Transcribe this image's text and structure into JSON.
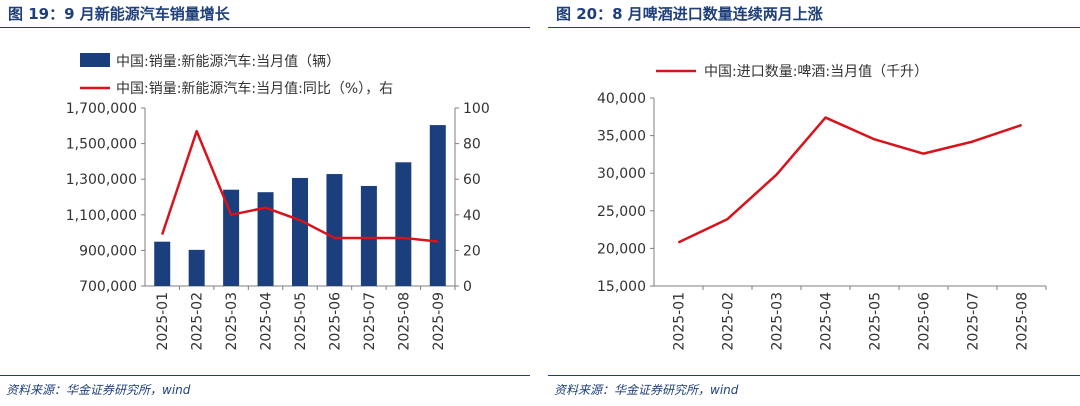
{
  "colors": {
    "bar": "#1a3f7c",
    "line": "#d9121b",
    "title": "#1f3f7a",
    "axis": "#7f7f7f"
  },
  "figures": [
    {
      "title": "图 19：9 月新能源汽车销量增长",
      "source": "资料来源：华金证券研究所，wind"
    },
    {
      "title": "图 20：8 月啤酒进口数量连续两月上涨",
      "source": "资料来源：华金证券研究所，wind"
    }
  ],
  "chart_data": [
    {
      "type": "bar",
      "categories": [
        "2025-01",
        "2025-02",
        "2025-03",
        "2025-04",
        "2025-05",
        "2025-06",
        "2025-07",
        "2025-08",
        "2025-09"
      ],
      "series": [
        {
          "name": "中国:销量:新能源汽车:当月值（辆）",
          "type": "bar",
          "axis": "left",
          "values": [
            949000,
            903000,
            1241000,
            1227000,
            1307000,
            1329000,
            1262000,
            1395000,
            1604000
          ]
        },
        {
          "name": "中国:销量:新能源汽车:当月值:同比（%），右",
          "type": "line",
          "axis": "right",
          "values": [
            29,
            87,
            40,
            44,
            37,
            27,
            27,
            27,
            25
          ]
        }
      ],
      "left_axis": {
        "ylim": [
          700000,
          1700000
        ],
        "ticks": [
          "700,000",
          "900,000",
          "1,100,000",
          "1,300,000",
          "1,500,000",
          "1,700,000"
        ]
      },
      "right_axis": {
        "ylim": [
          0,
          100
        ],
        "ticks": [
          "0",
          "20",
          "40",
          "60",
          "80",
          "100"
        ]
      },
      "legend": "top-left",
      "grid": false
    },
    {
      "type": "line",
      "categories": [
        "2025-01",
        "2025-02",
        "2025-03",
        "2025-04",
        "2025-05",
        "2025-06",
        "2025-07",
        "2025-08"
      ],
      "series": [
        {
          "name": "中国:进口数量:啤酒:当月值（千升）",
          "values": [
            20800,
            23900,
            29800,
            37400,
            34500,
            32600,
            34200,
            36400
          ]
        }
      ],
      "ylim": [
        15000,
        40000
      ],
      "ticks": [
        "15,000",
        "20,000",
        "25,000",
        "30,000",
        "35,000",
        "40,000"
      ],
      "legend": "top",
      "grid": false
    }
  ]
}
